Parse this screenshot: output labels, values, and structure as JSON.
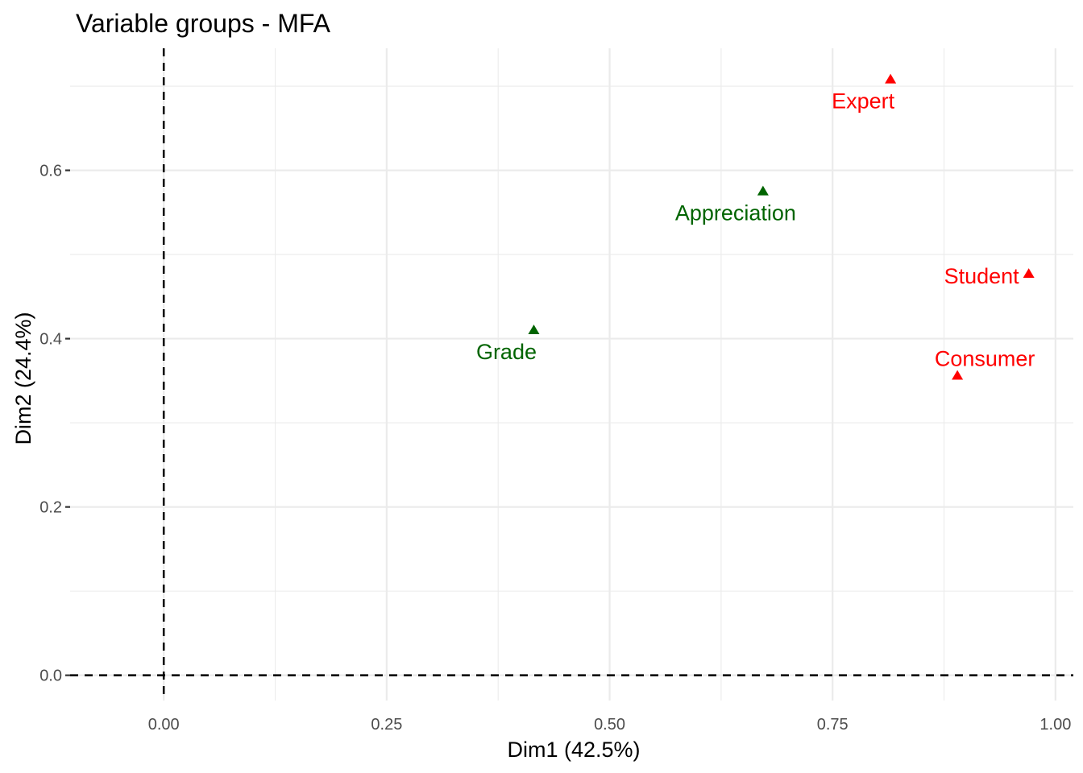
{
  "chart_data": {
    "type": "scatter",
    "title": "Variable groups - MFA",
    "xlabel": "Dim1 (42.5%)",
    "ylabel": "Dim2 (24.4%)",
    "xlim": [
      -0.105,
      1.02
    ],
    "ylim": [
      -0.03,
      0.745
    ],
    "x_ticks": [
      0.0,
      0.25,
      0.5,
      0.75,
      1.0
    ],
    "x_tick_labels": [
      "0.00",
      "0.25",
      "0.50",
      "0.75",
      "1.00"
    ],
    "y_ticks": [
      0.0,
      0.2,
      0.4,
      0.6
    ],
    "y_tick_labels": [
      "0.0",
      "0.2",
      "0.4",
      "0.6"
    ],
    "reference_lines": {
      "x": 0,
      "y": 0
    },
    "grid": true,
    "points": [
      {
        "label": "Expert",
        "x": 0.815,
        "y": 0.708,
        "color": "#ff0000",
        "label_pos": "below"
      },
      {
        "label": "Appreciation",
        "x": 0.672,
        "y": 0.575,
        "color": "#006400",
        "label_pos": "below"
      },
      {
        "label": "Student",
        "x": 0.97,
        "y": 0.477,
        "color": "#ff0000",
        "label_pos": "left"
      },
      {
        "label": "Grade",
        "x": 0.415,
        "y": 0.41,
        "color": "#006400",
        "label_pos": "below"
      },
      {
        "label": "Consumer",
        "x": 0.89,
        "y": 0.356,
        "color": "#ff0000",
        "label_pos": "above"
      }
    ]
  }
}
